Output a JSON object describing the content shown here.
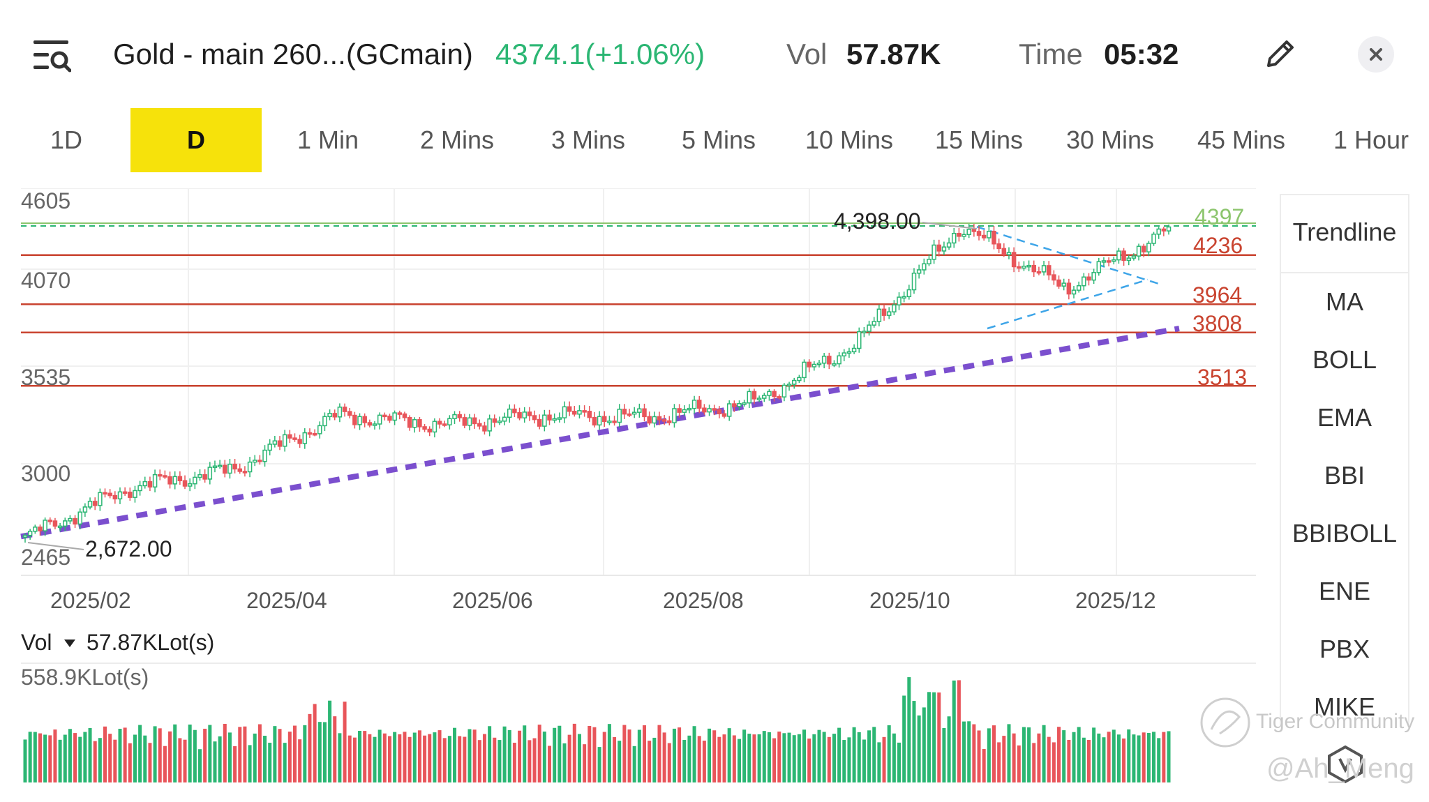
{
  "header": {
    "title": "Gold - main 260...(GCmain)",
    "price": "4374.1(+1.06%)",
    "vol_label": "Vol",
    "vol_value": "57.87K",
    "time_label": "Time",
    "time_value": "05:32"
  },
  "tabs": [
    {
      "label": "1D",
      "active": false
    },
    {
      "label": "D",
      "active": true
    },
    {
      "label": "1 Min",
      "active": false
    },
    {
      "label": "2 Mins",
      "active": false
    },
    {
      "label": "3 Mins",
      "active": false
    },
    {
      "label": "5 Mins",
      "active": false
    },
    {
      "label": "10 Mins",
      "active": false
    },
    {
      "label": "15 Mins",
      "active": false
    },
    {
      "label": "30 Mins",
      "active": false
    },
    {
      "label": "45 Mins",
      "active": false
    },
    {
      "label": "1 Hour",
      "active": false
    }
  ],
  "indicators": [
    "Trendline",
    "MA",
    "BOLL",
    "EMA",
    "BBI",
    "BBIBOLL",
    "ENE",
    "PBX",
    "MIKE"
  ],
  "volume_panel": {
    "label": "Vol",
    "current": "57.87KLot(s)",
    "max_label": "558.9KLot(s)"
  },
  "watermark": {
    "brand": "Tiger Community",
    "user": "@Ah_Meng"
  },
  "colors": {
    "up": "#2bb673",
    "down": "#e8555a",
    "accent": "#f6e20b",
    "level": "#c9432f",
    "level_green": "#8cc56d",
    "purple": "#7b4fce",
    "blue": "#3ea5e8"
  },
  "chart_data": {
    "type": "candlestick",
    "y_ticks": [
      "4605",
      "4070",
      "3535",
      "3000",
      "2465"
    ],
    "ylim": [
      2465,
      4605
    ],
    "x_ticks": [
      "2025/02",
      "2025/04",
      "2025/06",
      "2025/08",
      "2025/10",
      "2025/12"
    ],
    "annotations": {
      "high": "4,398.00",
      "low": "2,672.00"
    },
    "levels": [
      {
        "label": "4397",
        "value": 4397,
        "style": "green-dashed"
      },
      {
        "label": "4236",
        "value": 4236,
        "style": "red"
      },
      {
        "label": "3964",
        "value": 3964,
        "style": "red"
      },
      {
        "label": "3808",
        "value": 3808,
        "style": "red"
      },
      {
        "label": "3513",
        "value": 3513,
        "style": "red"
      }
    ],
    "key_closes": [
      {
        "date": "2025/01",
        "value": 2672
      },
      {
        "date": "2025/02",
        "value": 2950
      },
      {
        "date": "2025/03",
        "value": 3050
      },
      {
        "date": "2025/04",
        "value": 3350
      },
      {
        "date": "2025/05",
        "value": 3300
      },
      {
        "date": "2025/06",
        "value": 3350
      },
      {
        "date": "2025/07",
        "value": 3340
      },
      {
        "date": "2025/08",
        "value": 3420
      },
      {
        "date": "2025/09",
        "value": 3750
      },
      {
        "date": "2025/10",
        "value": 4398
      },
      {
        "date": "2025/11",
        "value": 4050
      },
      {
        "date": "2025/12",
        "value": 4374
      }
    ]
  }
}
